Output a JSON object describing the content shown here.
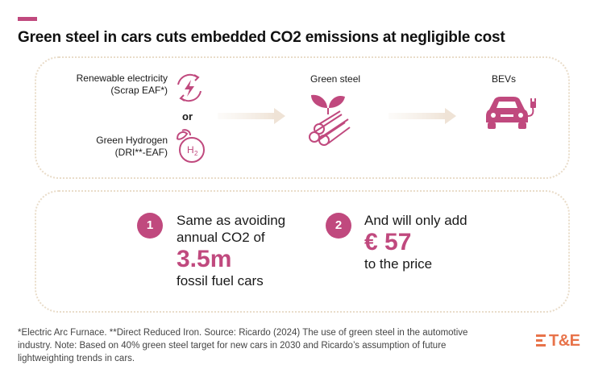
{
  "title": "Green steel in cars cuts embedded CO2 emissions at negligible cost",
  "flow": {
    "sources": [
      {
        "label_line1": "Renewable electricity",
        "label_line2": "(Scrap EAF*)",
        "icon": "lightning-cycle-icon"
      },
      {
        "label_line1": "Green Hydrogen",
        "label_line2": "(DRI**-EAF)",
        "icon": "hydrogen-h2-icon"
      }
    ],
    "or_label": "or",
    "middle": {
      "label": "Green steel",
      "icon": "green-steel-pipes-icon"
    },
    "end": {
      "label": "BEVs",
      "icon": "electric-car-icon"
    }
  },
  "stats": [
    {
      "number": "1",
      "line1": "Same as avoiding",
      "line2": "annual CO2 of",
      "value": "3.5m",
      "line3": "fossil fuel cars"
    },
    {
      "number": "2",
      "line1": "And will only add",
      "value": "€ 57",
      "line3": "to the price"
    }
  ],
  "footnote": "*Electric Arc Furnace. **Direct Reduced Iron. Source: Ricardo (2024) The use of green steel in the automotive industry. Note: Based on 40% green steel target for new cars in 2030 and Ricardo’s assumption of future lightweighting trends in cars.",
  "logo": "T&E",
  "colors": {
    "accent": "#c0497e",
    "logo": "#e8734a",
    "box_border": "#e9dcc9"
  }
}
